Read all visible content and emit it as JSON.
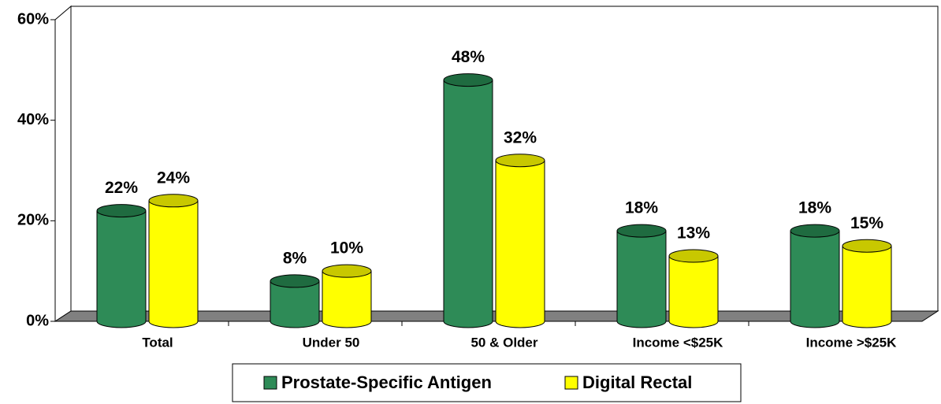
{
  "chart_data": {
    "type": "bar",
    "categories": [
      "Total",
      "Under 50",
      "50 & Older",
      "Income <$25K",
      "Income >$25K"
    ],
    "series": [
      {
        "name": "Prostate-Specific Antigen",
        "color": "#2e8b57",
        "values": [
          22,
          8,
          48,
          18,
          18
        ],
        "value_labels": [
          "22%",
          "8%",
          "48%",
          "18%",
          "18%"
        ]
      },
      {
        "name": "Digital Rectal",
        "color": "#ffff00",
        "values": [
          24,
          10,
          32,
          13,
          15
        ],
        "value_labels": [
          "24%",
          "10%",
          "32%",
          "13%",
          "15%"
        ]
      }
    ],
    "ylim": [
      0,
      60
    ],
    "yticks": [
      {
        "value": 0,
        "label": "0%"
      },
      {
        "value": 20,
        "label": "20%"
      },
      {
        "value": 40,
        "label": "40%"
      },
      {
        "value": 60,
        "label": "60%"
      }
    ],
    "grid": false,
    "legend": "bottom"
  }
}
